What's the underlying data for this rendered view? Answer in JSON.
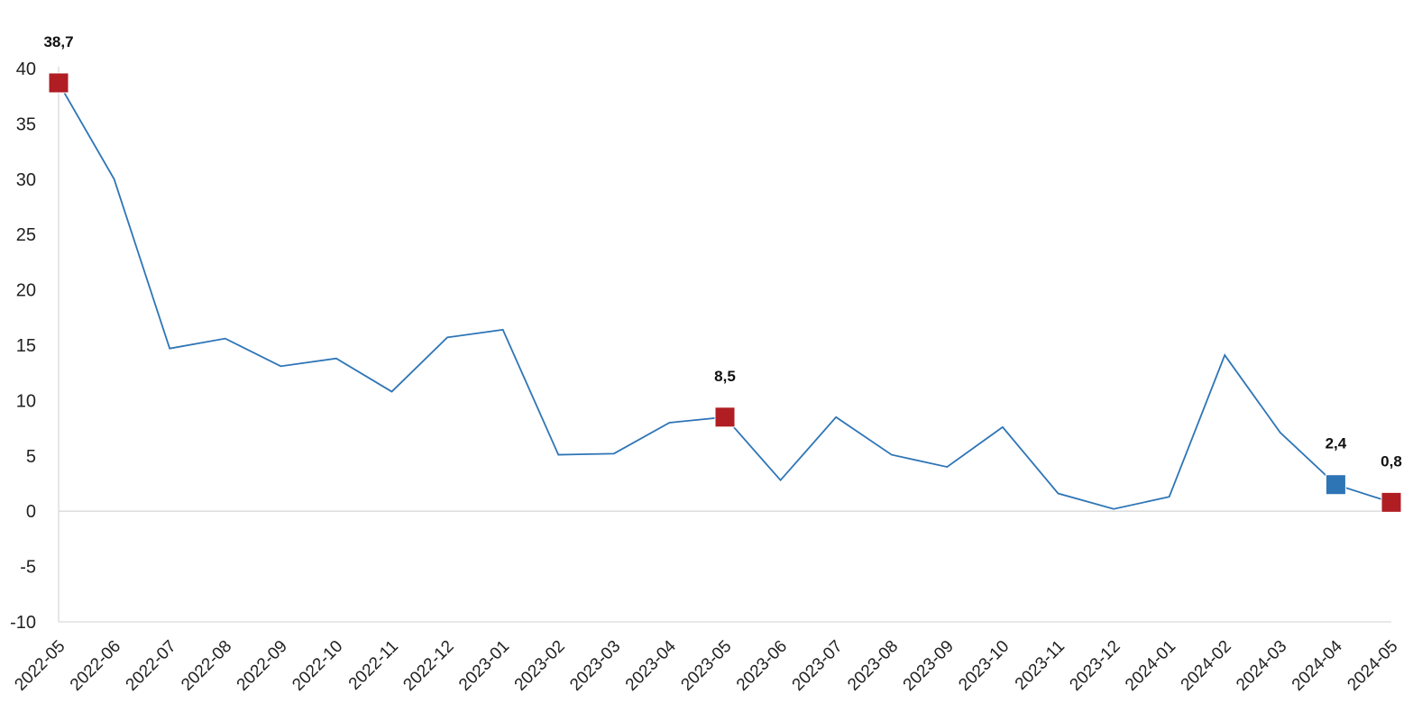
{
  "chart_data": {
    "type": "line",
    "title": "",
    "xlabel": "",
    "ylabel": "",
    "categories": [
      "2022-05",
      "2022-06",
      "2022-07",
      "2022-08",
      "2022-09",
      "2022-10",
      "2022-11",
      "2022-12",
      "2023-01",
      "2023-02",
      "2023-03",
      "2023-04",
      "2023-05",
      "2023-06",
      "2023-07",
      "2023-08",
      "2023-09",
      "2023-10",
      "2023-11",
      "2023-12",
      "2024-01",
      "2024-02",
      "2024-03",
      "2024-04",
      "2024-05"
    ],
    "series": [
      {
        "values": [
          38.7,
          30.0,
          14.7,
          15.6,
          13.1,
          13.8,
          10.8,
          15.7,
          16.4,
          5.1,
          5.2,
          8.0,
          8.5,
          2.8,
          8.5,
          5.1,
          4.0,
          7.6,
          1.6,
          0.2,
          1.3,
          14.1,
          7.1,
          2.4,
          0.8
        ],
        "color": "#2e75b6"
      }
    ],
    "ylim": [
      -10,
      40
    ],
    "yticks": [
      "40",
      "35",
      "30",
      "25",
      "20",
      "15",
      "10",
      "5",
      "0",
      "-5",
      "-10"
    ],
    "highlighted_points": [
      {
        "category": "2022-05",
        "label": "38,7",
        "color": "#b01e23"
      },
      {
        "category": "2023-05",
        "label": "8,5",
        "color": "#b01e23"
      },
      {
        "category": "2024-04",
        "label": "2,4",
        "color": "#2e75b6"
      },
      {
        "category": "2024-05",
        "label": "0,8",
        "color": "#b01e23"
      }
    ],
    "grid": false,
    "zero_line": true,
    "legend": "none"
  }
}
